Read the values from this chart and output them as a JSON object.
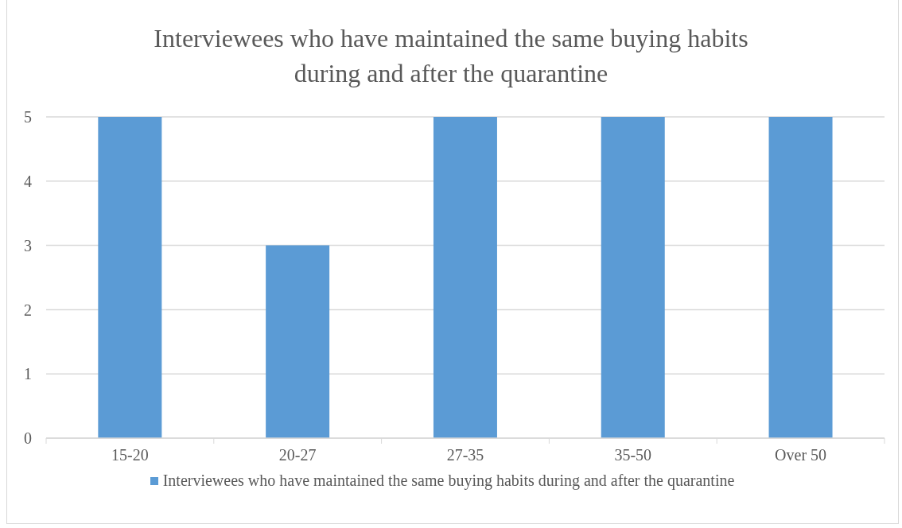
{
  "chart_data": {
    "type": "bar",
    "title": "Interviewees who have maintained the same buying habits during and after the quarantine",
    "categories": [
      "15-20",
      "20-27",
      "27-35",
      "35-50",
      "Over 50"
    ],
    "series": [
      {
        "name": "Interviewees who have maintained the same buying habits during and after the quarantine",
        "color": "#5b9bd5",
        "values": [
          5,
          3,
          5,
          5,
          5
        ]
      }
    ],
    "ylim": [
      0,
      5
    ],
    "yticks": [
      0,
      1,
      2,
      3,
      4,
      5
    ],
    "grid": "y",
    "legend": "bottom"
  }
}
